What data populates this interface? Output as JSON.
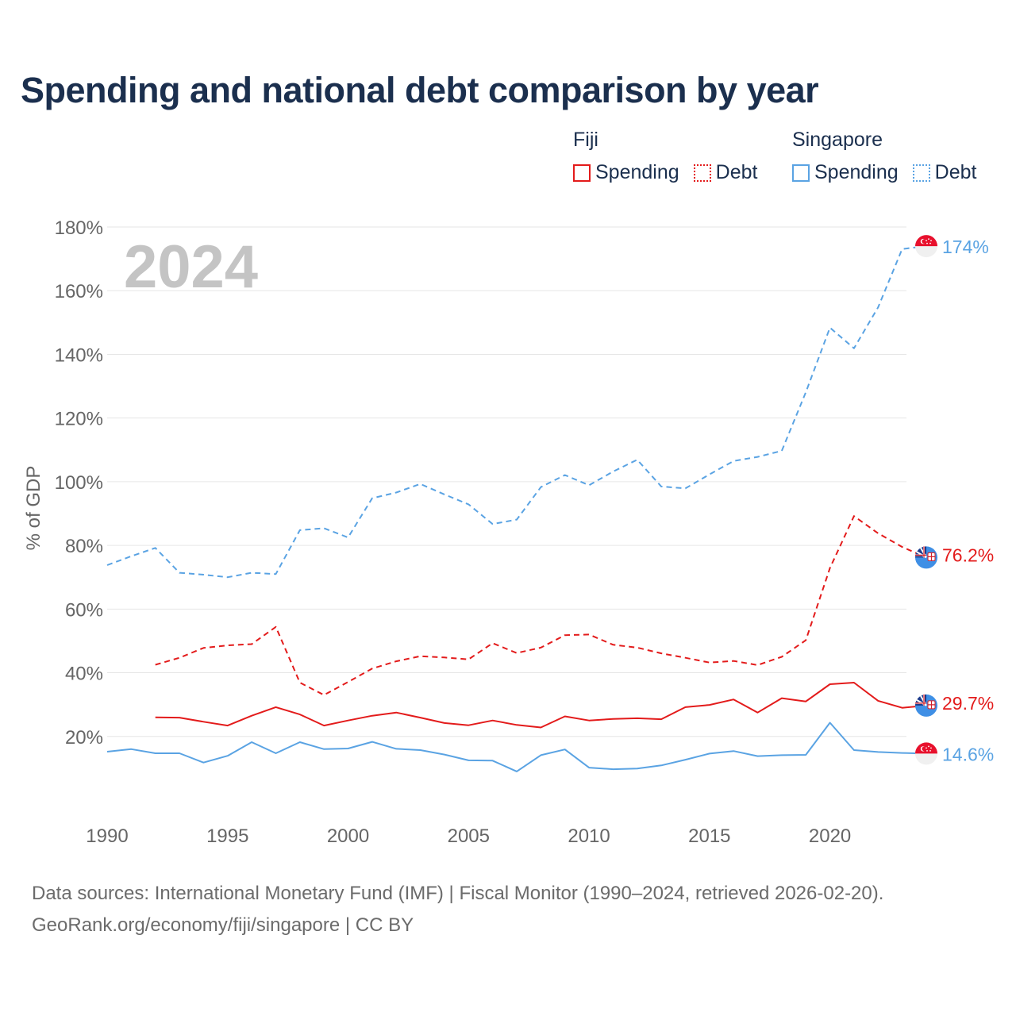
{
  "title": "Spending and national debt comparison by year",
  "legend": {
    "groups": [
      {
        "name": "Fiji",
        "items": [
          {
            "label": "Spending",
            "style": "solid",
            "color": "#e31b1b"
          },
          {
            "label": "Debt",
            "style": "dotted",
            "color": "#e31b1b"
          }
        ]
      },
      {
        "name": "Singapore",
        "items": [
          {
            "label": "Spending",
            "style": "solid",
            "color": "#5aa3e3"
          },
          {
            "label": "Debt",
            "style": "dotted",
            "color": "#5aa3e3"
          }
        ]
      }
    ]
  },
  "year_watermark": "2024",
  "end_labels": {
    "sg_debt": "174%",
    "fj_debt": "76.2%",
    "fj_spending": "29.7%",
    "sg_spending": "14.6%"
  },
  "footer": {
    "line1": "Data sources: International Monetary Fund (IMF) | Fiscal Monitor (1990–2024, retrieved 2026-02-20).",
    "line2": "GeoRank.org/economy/fiji/singapore | CC BY"
  },
  "chart_data": {
    "type": "line",
    "title": "Spending and national debt comparison by year",
    "ylabel": "% of GDP",
    "xlabel": "",
    "xlim": [
      1990,
      2024
    ],
    "ylim": [
      0,
      180
    ],
    "x_ticks": [
      1990,
      1995,
      2000,
      2005,
      2010,
      2015,
      2020
    ],
    "y_ticks": [
      20,
      40,
      60,
      80,
      100,
      120,
      140,
      160,
      180
    ],
    "y_tick_labels": [
      "20%",
      "40%",
      "60%",
      "80%",
      "100%",
      "120%",
      "140%",
      "160%",
      "180%"
    ],
    "grid": true,
    "x": [
      1990,
      1991,
      1992,
      1993,
      1994,
      1995,
      1996,
      1997,
      1998,
      1999,
      2000,
      2001,
      2002,
      2003,
      2004,
      2005,
      2006,
      2007,
      2008,
      2009,
      2010,
      2011,
      2012,
      2013,
      2014,
      2015,
      2016,
      2017,
      2018,
      2019,
      2020,
      2021,
      2022,
      2023,
      2024
    ],
    "series": [
      {
        "name": "Singapore Debt",
        "country": "Singapore",
        "measure": "Debt",
        "color": "#5aa3e3",
        "dash": true,
        "label_key": "sg_debt",
        "values": [
          73.8,
          76.6,
          79.2,
          71.4,
          70.8,
          70.0,
          71.4,
          71.0,
          84.8,
          85.4,
          82.5,
          94.8,
          96.6,
          99.3,
          96.0,
          92.9,
          86.7,
          88.1,
          98.3,
          102.1,
          98.9,
          103.2,
          106.9,
          98.5,
          97.9,
          102.3,
          106.5,
          107.8,
          109.7,
          128.1,
          148.4,
          141.9,
          154.8,
          173.1,
          174.0
        ]
      },
      {
        "name": "Fiji Debt",
        "country": "Fiji",
        "measure": "Debt",
        "color": "#e31b1b",
        "dash": true,
        "label_key": "fj_debt",
        "values": [
          null,
          null,
          42.5,
          44.7,
          47.8,
          48.6,
          49.0,
          54.4,
          36.9,
          33.0,
          37.1,
          41.3,
          43.6,
          45.2,
          44.8,
          44.2,
          49.3,
          46.2,
          47.9,
          51.8,
          52.0,
          48.8,
          47.9,
          46.1,
          44.7,
          43.2,
          43.7,
          42.4,
          45.0,
          50.2,
          72.9,
          89.2,
          83.8,
          79.5,
          76.2
        ]
      },
      {
        "name": "Fiji Spending",
        "country": "Fiji",
        "measure": "Spending",
        "color": "#e31b1b",
        "dash": false,
        "label_key": "fj_spending",
        "values": [
          null,
          null,
          26.0,
          25.9,
          24.6,
          23.4,
          26.5,
          29.2,
          26.9,
          23.4,
          25.0,
          26.5,
          27.5,
          25.9,
          24.2,
          23.5,
          25.0,
          23.6,
          22.8,
          26.3,
          25.0,
          25.5,
          25.7,
          25.4,
          29.2,
          29.9,
          31.6,
          27.5,
          32.0,
          31.0,
          36.4,
          36.9,
          31.2,
          29.0,
          29.7
        ]
      },
      {
        "name": "Singapore Spending",
        "country": "Singapore",
        "measure": "Spending",
        "color": "#5aa3e3",
        "dash": false,
        "label_key": "sg_spending",
        "values": [
          15.2,
          16.0,
          14.7,
          14.7,
          11.8,
          13.9,
          18.2,
          14.7,
          18.2,
          16.0,
          16.2,
          18.3,
          16.1,
          15.7,
          14.3,
          12.5,
          12.4,
          9.0,
          14.1,
          15.9,
          10.2,
          9.7,
          9.9,
          10.9,
          12.7,
          14.6,
          15.4,
          13.8,
          14.1,
          14.2,
          24.3,
          15.7,
          15.1,
          14.8,
          14.6
        ]
      }
    ]
  }
}
